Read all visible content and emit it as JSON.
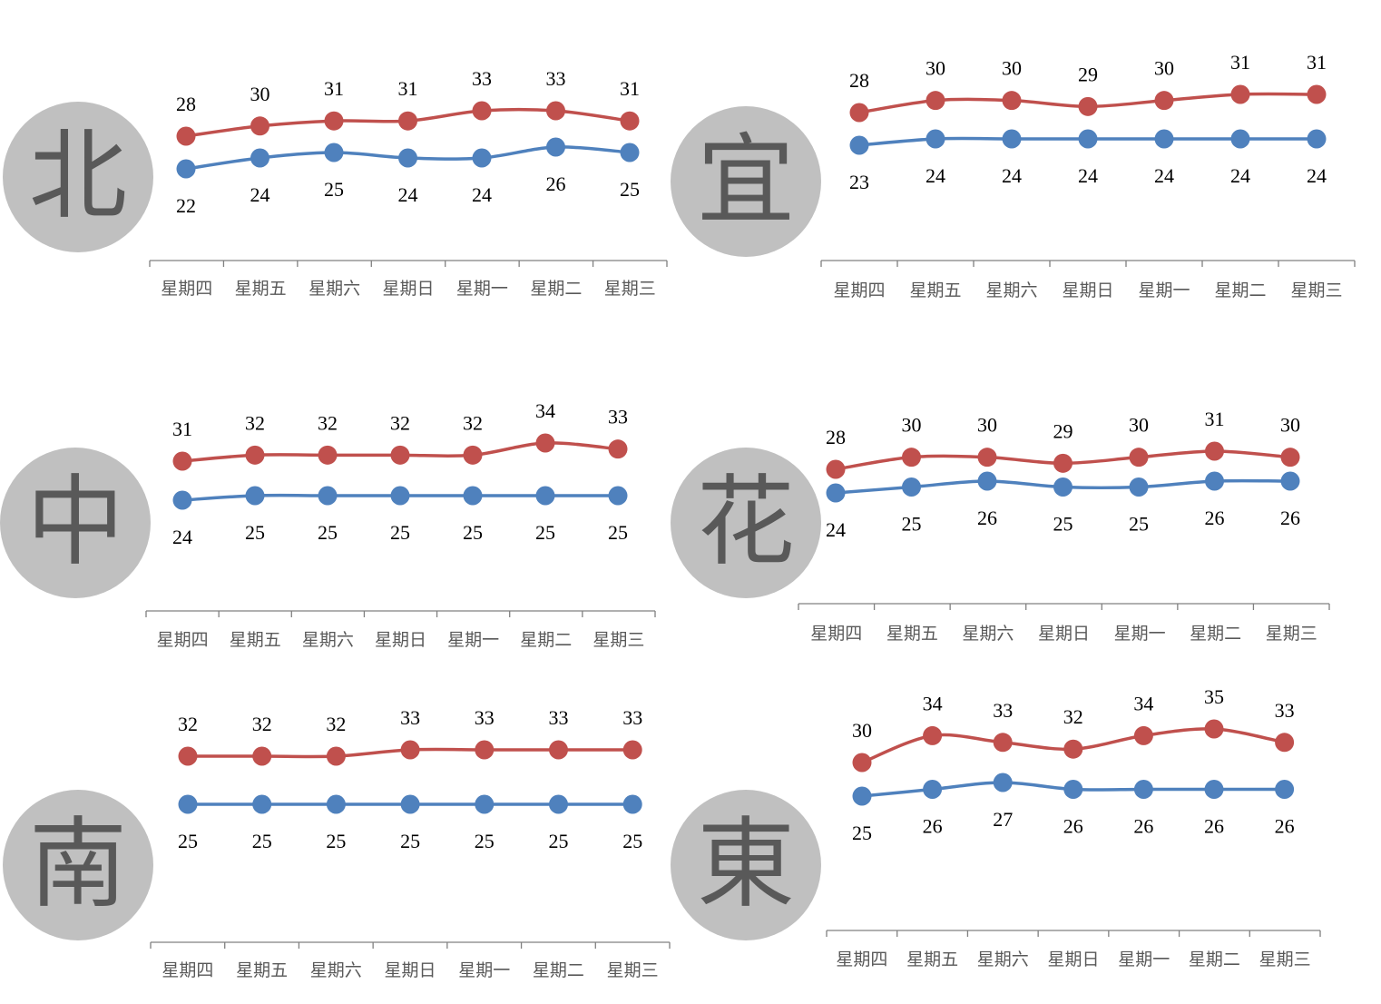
{
  "colors": {
    "high": "#c0504d",
    "low": "#4f81bd",
    "axis": "#808080",
    "circle": "#c0c0c0",
    "circle_text": "#595959"
  },
  "chart_data": [
    {
      "type": "line",
      "region": "北",
      "categories": [
        "星期四",
        "星期五",
        "星期六",
        "星期日",
        "星期一",
        "星期二",
        "星期三"
      ],
      "series": [
        {
          "values": [
            28,
            30,
            31,
            31,
            33,
            33,
            31
          ]
        },
        {
          "values": [
            22,
            24,
            25,
            24,
            24,
            26,
            25
          ]
        }
      ]
    },
    {
      "type": "line",
      "region": "宜",
      "categories": [
        "星期四",
        "星期五",
        "星期六",
        "星期日",
        "星期一",
        "星期二",
        "星期三"
      ],
      "series": [
        {
          "values": [
            28,
            30,
            30,
            29,
            30,
            31,
            31
          ]
        },
        {
          "values": [
            23,
            24,
            24,
            24,
            24,
            24,
            24
          ]
        }
      ]
    },
    {
      "type": "line",
      "region": "中",
      "categories": [
        "星期四",
        "星期五",
        "星期六",
        "星期日",
        "星期一",
        "星期二",
        "星期三"
      ],
      "series": [
        {
          "values": [
            31,
            32,
            32,
            32,
            32,
            34,
            33
          ]
        },
        {
          "values": [
            24,
            25,
            25,
            25,
            25,
            25,
            25
          ]
        }
      ]
    },
    {
      "type": "line",
      "region": "花",
      "categories": [
        "星期四",
        "星期五",
        "星期六",
        "星期日",
        "星期一",
        "星期二",
        "星期三"
      ],
      "series": [
        {
          "values": [
            28,
            30,
            30,
            29,
            30,
            31,
            30
          ]
        },
        {
          "values": [
            24,
            25,
            26,
            25,
            25,
            26,
            26
          ]
        }
      ]
    },
    {
      "type": "line",
      "region": "南",
      "categories": [
        "星期四",
        "星期五",
        "星期六",
        "星期日",
        "星期一",
        "星期二",
        "星期三"
      ],
      "series": [
        {
          "values": [
            32,
            32,
            32,
            33,
            33,
            33,
            33
          ]
        },
        {
          "values": [
            25,
            25,
            25,
            25,
            25,
            25,
            25
          ]
        }
      ]
    },
    {
      "type": "line",
      "region": "東",
      "categories": [
        "星期四",
        "星期五",
        "星期六",
        "星期日",
        "星期一",
        "星期二",
        "星期三"
      ],
      "series": [
        {
          "values": [
            30,
            34,
            33,
            32,
            34,
            35,
            33
          ]
        },
        {
          "values": [
            25,
            26,
            27,
            26,
            26,
            26,
            26
          ]
        }
      ]
    }
  ]
}
